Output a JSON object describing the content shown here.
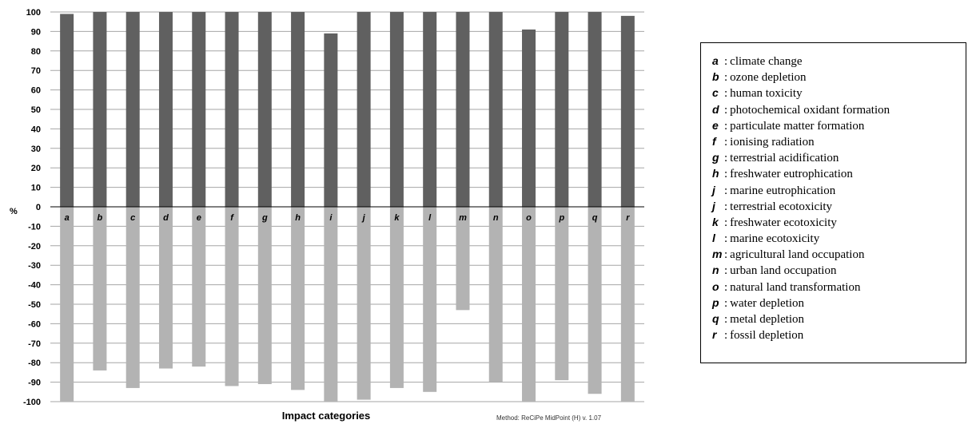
{
  "chart_data": {
    "type": "bar",
    "stacked": true,
    "categories": [
      "a",
      "b",
      "c",
      "d",
      "e",
      "f",
      "g",
      "h",
      "i",
      "j",
      "k",
      "l",
      "m",
      "n",
      "o",
      "p",
      "q",
      "r"
    ],
    "series": [
      {
        "values": [
          99,
          100,
          100,
          100,
          100,
          100,
          100,
          100,
          89,
          100,
          100,
          100,
          100,
          100,
          91,
          100,
          100,
          98
        ]
      },
      {
        "values": [
          -100,
          -84,
          -93,
          -83,
          -82,
          -92,
          -91,
          -94,
          -100,
          -99,
          -93,
          -95,
          -53,
          -90,
          -100,
          -89,
          -96,
          -100
        ]
      }
    ],
    "ylim": [
      -100,
      100
    ],
    "yticks": [
      100,
      90,
      80,
      70,
      60,
      50,
      40,
      30,
      20,
      10,
      0,
      -10,
      -20,
      -30,
      -40,
      -50,
      -60,
      -70,
      -80,
      -90,
      -100
    ],
    "ylabel": "%",
    "xlabel": "Impact categories",
    "grid": true,
    "legend_position": "right",
    "note": "Method: ReCiPe MidPoint (H) v. 1.07",
    "colors": {
      "positive": "#606060",
      "negative": "#b3b3b3",
      "grid": "#a6a6a6",
      "axis": "#000000"
    }
  },
  "legend": {
    "items": [
      {
        "key": "a",
        "label": "climate change"
      },
      {
        "key": "b",
        "label": "ozone depletion"
      },
      {
        "key": "c",
        "label": "human toxicity"
      },
      {
        "key": "d",
        "label": "photochemical oxidant formation"
      },
      {
        "key": "e",
        "label": "particulate matter formation"
      },
      {
        "key": "f",
        "label": "ionising radiation"
      },
      {
        "key": "g",
        "label": "terrestrial acidification"
      },
      {
        "key": "h",
        "label": "freshwater eutrophication"
      },
      {
        "key": "j",
        "label": "marine eutrophication"
      },
      {
        "key": "j",
        "label": "terrestrial ecotoxicity"
      },
      {
        "key": "k",
        "label": "freshwater ecotoxicity"
      },
      {
        "key": "l",
        "label": "marine ecotoxicity"
      },
      {
        "key": "m",
        "label": "agricultural land occupation"
      },
      {
        "key": "n",
        "label": "urban land occupation"
      },
      {
        "key": "o",
        "label": "natural land transformation"
      },
      {
        "key": "p",
        "label": "water depletion"
      },
      {
        "key": "q",
        "label": "metal depletion"
      },
      {
        "key": "r",
        "label": "fossil depletion"
      }
    ]
  }
}
